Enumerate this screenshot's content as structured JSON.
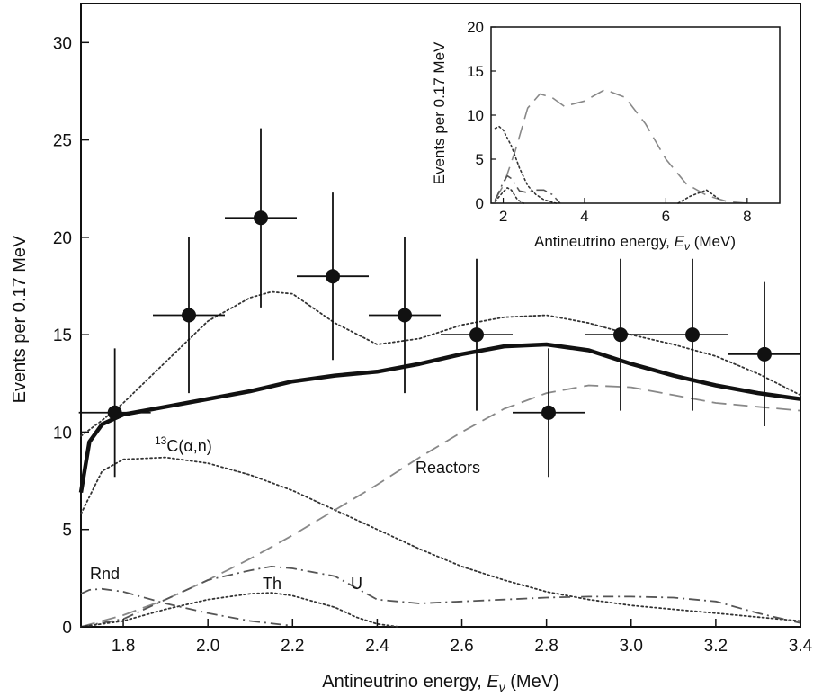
{
  "chart_data": [
    {
      "type": "scatter",
      "xlabel_prefix": "Antineutrino energy, ",
      "xlabel_var": "E",
      "xlabel_sub": "ν",
      "xlabel_suffix": " (MeV)",
      "ylabel": "Events per 0.17 MeV",
      "xlim": [
        1.7,
        3.4
      ],
      "ylim": [
        0,
        32
      ],
      "x_ticks": [
        "1.8",
        "2.0",
        "2.2",
        "2.4",
        "2.6",
        "2.8",
        "3.0",
        "3.2",
        "3.4"
      ],
      "y_ticks": [
        "0",
        "5",
        "10",
        "15",
        "20",
        "25",
        "30"
      ],
      "grid": false,
      "data_points": {
        "x": [
          1.78,
          1.955,
          2.125,
          2.295,
          2.465,
          2.635,
          2.805,
          2.975,
          3.145,
          3.315
        ],
        "y": [
          11,
          16,
          21,
          18,
          16,
          15,
          11,
          15,
          15,
          14
        ],
        "y_err_low": [
          3.3,
          4.0,
          4.6,
          4.3,
          4.0,
          3.9,
          3.3,
          3.9,
          3.9,
          3.7
        ],
        "y_err_high": [
          3.3,
          4.0,
          4.6,
          4.3,
          4.0,
          3.9,
          3.3,
          3.9,
          3.9,
          3.7
        ],
        "x_halfwidth": 0.085
      },
      "series": [
        {
          "id": "total",
          "style": "thick-solid",
          "x": [
            1.7,
            1.72,
            1.75,
            1.8,
            1.9,
            2.0,
            2.1,
            2.2,
            2.3,
            2.4,
            2.5,
            2.6,
            2.7,
            2.8,
            2.9,
            3.0,
            3.1,
            3.2,
            3.3,
            3.4
          ],
          "y": [
            6.9,
            9.5,
            10.4,
            10.9,
            11.3,
            11.7,
            12.1,
            12.6,
            12.9,
            13.1,
            13.5,
            14.0,
            14.4,
            14.5,
            14.2,
            13.5,
            12.9,
            12.4,
            12.0,
            11.7
          ]
        },
        {
          "id": "geo-total",
          "style": "dotted",
          "x": [
            1.7,
            1.75,
            1.8,
            1.9,
            2.0,
            2.1,
            2.15,
            2.2,
            2.3,
            2.4,
            2.5,
            2.6,
            2.7,
            2.8,
            2.9,
            3.0,
            3.1,
            3.2,
            3.3,
            3.4
          ],
          "y": [
            9.8,
            10.6,
            11.5,
            13.6,
            15.7,
            16.9,
            17.2,
            17.1,
            15.6,
            14.5,
            14.8,
            15.5,
            15.9,
            16.0,
            15.6,
            15.0,
            14.5,
            13.9,
            13.0,
            11.9
          ]
        },
        {
          "id": "c13",
          "style": "dotted",
          "x": [
            1.7,
            1.75,
            1.8,
            1.9,
            2.0,
            2.1,
            2.2,
            2.3,
            2.4,
            2.5,
            2.6,
            2.7,
            2.8,
            2.9,
            3.0,
            3.1,
            3.2,
            3.3,
            3.4
          ],
          "y": [
            5.8,
            8.0,
            8.6,
            8.7,
            8.4,
            7.8,
            7.0,
            6.0,
            5.0,
            4.0,
            3.1,
            2.4,
            1.8,
            1.4,
            1.1,
            0.9,
            0.7,
            0.5,
            0.3
          ]
        },
        {
          "id": "reactors",
          "style": "long-dash",
          "x": [
            1.7,
            1.8,
            1.9,
            2.0,
            2.1,
            2.2,
            2.3,
            2.4,
            2.5,
            2.6,
            2.7,
            2.8,
            2.9,
            3.0,
            3.1,
            3.2,
            3.3,
            3.4
          ],
          "y": [
            0,
            0.6,
            1.4,
            2.4,
            3.5,
            4.7,
            6.0,
            7.3,
            8.7,
            10.0,
            11.2,
            12.0,
            12.4,
            12.3,
            11.9,
            11.5,
            11.3,
            11.1
          ]
        },
        {
          "id": "th",
          "style": "dash-dot",
          "x": [
            1.7,
            1.8,
            1.9,
            2.0,
            2.1,
            2.15,
            2.2,
            2.3,
            2.35,
            2.4,
            2.5,
            2.6,
            2.7,
            2.8,
            2.9,
            3.0,
            3.1,
            3.2,
            3.3,
            3.4
          ],
          "y": [
            0,
            0.4,
            1.4,
            2.4,
            2.9,
            3.1,
            3.0,
            2.6,
            2.0,
            1.4,
            1.2,
            1.3,
            1.4,
            1.5,
            1.55,
            1.55,
            1.5,
            1.3,
            0.7,
            0.2
          ]
        },
        {
          "id": "u",
          "style": "dotted",
          "x": [
            1.7,
            1.8,
            1.9,
            2.0,
            2.1,
            2.15,
            2.2,
            2.3,
            2.35,
            2.4,
            2.45
          ],
          "y": [
            0,
            0.3,
            0.9,
            1.4,
            1.7,
            1.75,
            1.6,
            1.0,
            0.5,
            0.15,
            0
          ]
        },
        {
          "id": "rnd",
          "style": "dash-dot",
          "x": [
            1.7,
            1.72,
            1.75,
            1.8,
            1.9,
            2.0,
            2.1,
            2.2
          ],
          "y": [
            1.7,
            1.9,
            1.95,
            1.8,
            1.2,
            0.7,
            0.3,
            0.05
          ]
        }
      ],
      "annotations": {
        "c13_sup": "13",
        "c13_main": "C(",
        "c13_alpha": "α",
        "c13_end": ",n)",
        "reactors": "Reactors",
        "rnd": "Rnd",
        "th": "Th",
        "u": "U"
      }
    },
    {
      "type": "line",
      "inset": true,
      "xlabel_prefix": "Antineutrino energy, ",
      "xlabel_var": "E",
      "xlabel_sub": "ν",
      "xlabel_suffix": " (MeV)",
      "ylabel": "Events per 0.17 MeV",
      "xlim": [
        1.7,
        8.8
      ],
      "ylim": [
        0,
        20
      ],
      "x_ticks": [
        "2",
        "4",
        "6",
        "8"
      ],
      "y_ticks": [
        "0",
        "5",
        "10",
        "15",
        "20"
      ],
      "series": [
        {
          "id": "inset-reactors",
          "style": "long-dash",
          "x": [
            1.8,
            2.0,
            2.3,
            2.6,
            2.9,
            3.2,
            3.5,
            4.0,
            4.5,
            5.0,
            5.5,
            6.0,
            6.5,
            7.0,
            7.5,
            8.0
          ],
          "y": [
            0.4,
            2.0,
            6.0,
            10.8,
            12.4,
            12.0,
            11.0,
            11.6,
            12.9,
            12.0,
            9.0,
            5.0,
            2.2,
            0.9,
            0.2,
            0
          ]
        },
        {
          "id": "inset-c13",
          "style": "dotted",
          "x": [
            1.8,
            1.9,
            2.0,
            2.2,
            2.4,
            2.6,
            2.8,
            3.0,
            3.3
          ],
          "y": [
            8.5,
            8.7,
            8.3,
            6.5,
            4.0,
            2.0,
            1.0,
            0.4,
            0
          ]
        },
        {
          "id": "inset-th",
          "style": "dash-dot",
          "x": [
            1.8,
            2.0,
            2.1,
            2.2,
            2.4,
            2.6,
            2.8,
            3.0,
            3.2,
            3.4
          ],
          "y": [
            0.3,
            2.4,
            3.1,
            2.8,
            1.4,
            1.2,
            1.5,
            1.5,
            1.0,
            0
          ]
        },
        {
          "id": "inset-u",
          "style": "dotted",
          "x": [
            1.8,
            2.0,
            2.1,
            2.2,
            2.35,
            2.5
          ],
          "y": [
            0.2,
            1.3,
            1.75,
            1.5,
            0.4,
            0
          ]
        },
        {
          "id": "inset-c13-tail",
          "style": "dotted",
          "x": [
            6.3,
            6.6,
            7.0,
            7.3
          ],
          "y": [
            0,
            0.8,
            1.5,
            0.5
          ]
        }
      ]
    }
  ]
}
